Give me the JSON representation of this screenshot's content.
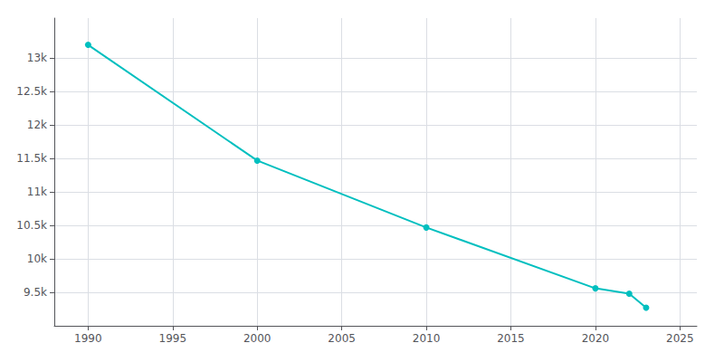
{
  "chart_data": {
    "type": "line",
    "x": [
      1990,
      2000,
      2010,
      2020,
      2022,
      2023
    ],
    "values": [
      13200,
      11470,
      10470,
      9560,
      9480,
      9270
    ],
    "color": "#00bfbf",
    "marker": "circle",
    "xlim": [
      1988,
      2026
    ],
    "xticks": [
      1990,
      1995,
      2000,
      2005,
      2010,
      2015,
      2020,
      2025
    ],
    "ylim": [
      9000,
      13600
    ],
    "yticks": [
      {
        "value": 9500,
        "label": "9.5k"
      },
      {
        "value": 10000,
        "label": "10k"
      },
      {
        "value": 10500,
        "label": "10.5k"
      },
      {
        "value": 11000,
        "label": "11k"
      },
      {
        "value": 11500,
        "label": "11.5k"
      },
      {
        "value": 12000,
        "label": "12k"
      },
      {
        "value": 12500,
        "label": "12.5k"
      },
      {
        "value": 13000,
        "label": "13k"
      }
    ],
    "grid": true
  }
}
